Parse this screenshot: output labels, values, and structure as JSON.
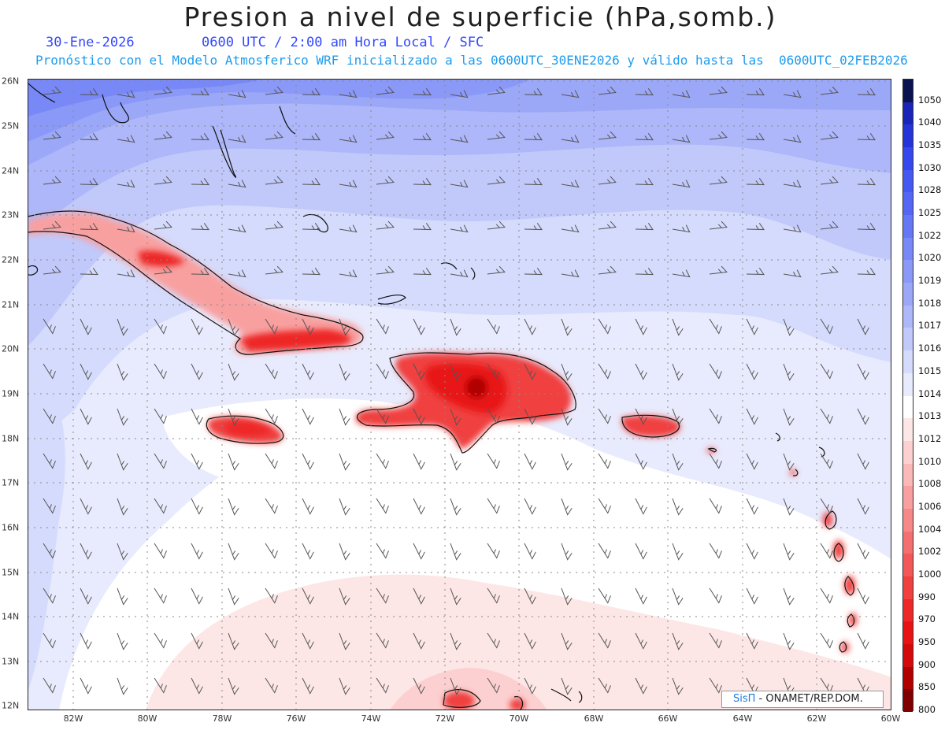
{
  "header": {
    "title": "Presion a nivel de superficie (hPa,somb.)",
    "date": "30-Ene-2026",
    "time_line": "0600 UTC / 2:00 am Hora Local / SFC",
    "model_line": "Pronóstico con el Modelo Atmosferico WRF inicializado a las 0600UTC_30ENE2026 y válido hasta las  0600UTC_02FEB2026"
  },
  "map": {
    "lon_range": [
      -83.2,
      -60
    ],
    "lat_range": [
      12,
      26
    ],
    "x_ticks": [
      "82W",
      "80W",
      "78W",
      "76W",
      "74W",
      "72W",
      "70W",
      "68W",
      "66W",
      "64W",
      "62W",
      "60W"
    ],
    "y_ticks": [
      "26N",
      "25N",
      "24N",
      "23N",
      "22N",
      "21N",
      "20N",
      "19N",
      "18N",
      "17N",
      "16N",
      "15N",
      "14N",
      "13N",
      "12N"
    ]
  },
  "legend": {
    "levels": [
      "1050",
      "1040",
      "1035",
      "1030",
      "1028",
      "1025",
      "1022",
      "1020",
      "1019",
      "1018",
      "1017",
      "1016",
      "1015",
      "1014",
      "1013",
      "1012",
      "1010",
      "1008",
      "1006",
      "1004",
      "1002",
      "1000",
      "990",
      "970",
      "950",
      "900",
      "850",
      "800"
    ],
    "colors": [
      "#0a1250",
      "#1a24b8",
      "#2534d8",
      "#3548ee",
      "#4658f2",
      "#5565f4",
      "#6677f5",
      "#7888f6",
      "#8a98f7",
      "#9ba8f8",
      "#adb7f9",
      "#c1c9fb",
      "#d5dbfc",
      "#e8ebfd",
      "#ffffff",
      "#fde6e6",
      "#fcd0d0",
      "#fab8b8",
      "#f8a0a0",
      "#f68888",
      "#f47070",
      "#f25858",
      "#f04040",
      "#ee2828",
      "#e81414",
      "#d40a0a",
      "#b00000",
      "#800000"
    ]
  },
  "credit": {
    "brand": "SisΠ",
    "rest": " - ONAMET/REP.DOM."
  }
}
